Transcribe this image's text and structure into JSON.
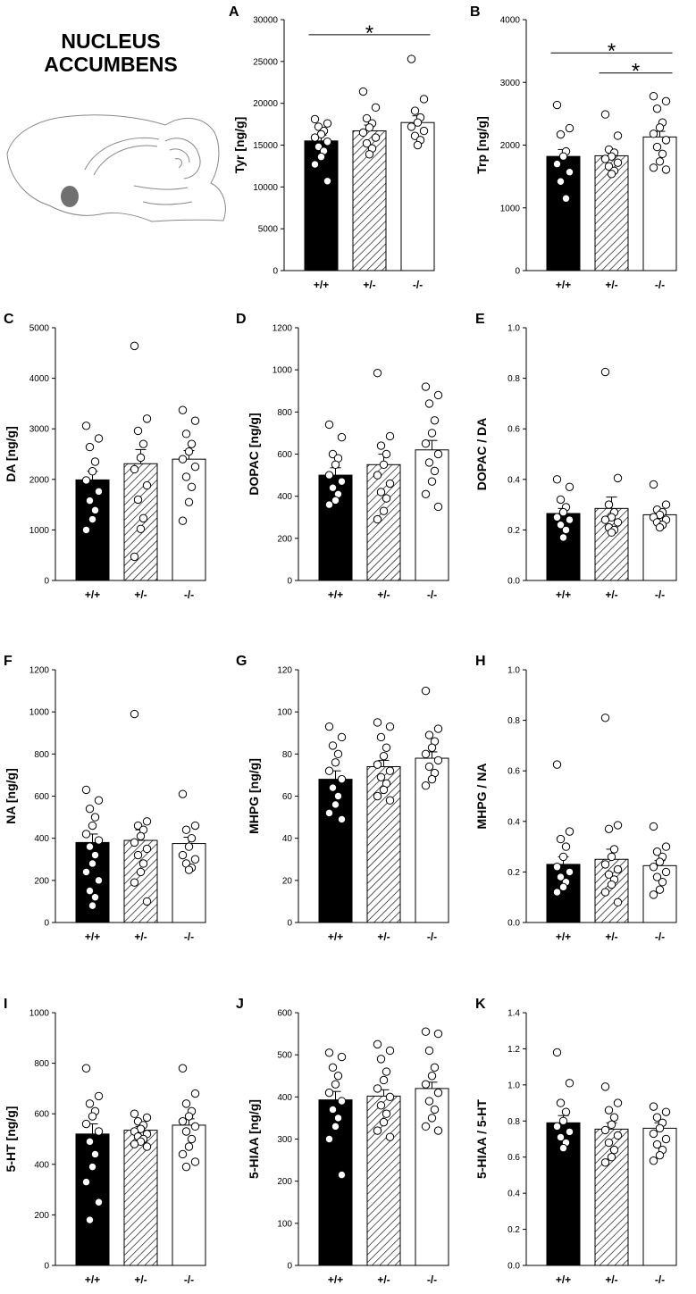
{
  "figure": {
    "title_lines": [
      "NUCLEUS",
      "ACCUMBENS"
    ],
    "bar_colors": [
      "#000000",
      "hatch",
      "#ffffff"
    ]
  },
  "chart_data": [
    {
      "id": "A",
      "type": "bar",
      "ylabel": "Tyr [ng/g]",
      "categories": [
        "+/+",
        "+/-",
        "-/-"
      ],
      "values": [
        15500,
        16700,
        17700
      ],
      "errors": [
        700,
        700,
        800
      ],
      "ylim": [
        0,
        30000
      ],
      "yticks": [
        0,
        5000,
        10000,
        15000,
        20000,
        25000,
        30000
      ],
      "points": [
        [
          18100,
          17600,
          17200,
          16700,
          16300,
          15900,
          15400,
          14800,
          14300,
          13600,
          12700,
          10700
        ],
        [
          21400,
          19500,
          18200,
          17600,
          17100,
          16500,
          15900,
          15200,
          14600,
          13900
        ],
        [
          25300,
          20500,
          19100,
          18300,
          17700,
          17200,
          16700,
          16100,
          15600,
          15000
        ]
      ],
      "significance": [
        {
          "from": 0,
          "to": 2,
          "label": "*",
          "y": 28200
        }
      ]
    },
    {
      "id": "B",
      "type": "bar",
      "ylabel": "Trp [ng/g]",
      "categories": [
        "+/+",
        "+/-",
        "-/-"
      ],
      "values": [
        1820,
        1830,
        2130
      ],
      "errors": [
        110,
        70,
        90
      ],
      "ylim": [
        0,
        4000
      ],
      "yticks": [
        0,
        1000,
        2000,
        3000,
        4000
      ],
      "points": [
        [
          2640,
          2270,
          2170,
          1900,
          1820,
          1700,
          1570,
          1420,
          1150
        ],
        [
          2490,
          2150,
          1930,
          1880,
          1820,
          1780,
          1720,
          1660,
          1590,
          1540
        ],
        [
          2780,
          2700,
          2580,
          2360,
          2280,
          2180,
          2080,
          1970,
          1860,
          1740,
          1640,
          1610
        ]
      ],
      "significance": [
        {
          "from": 0,
          "to": 2,
          "label": "*",
          "y": 3470
        },
        {
          "from": 1,
          "to": 2,
          "label": "*",
          "y": 3150
        }
      ]
    },
    {
      "id": "C",
      "type": "bar",
      "ylabel": "DA [ng/g]",
      "categories": [
        "+/+",
        "+/-",
        "-/-"
      ],
      "values": [
        1990,
        2310,
        2400
      ],
      "errors": [
        170,
        280,
        170
      ],
      "ylim": [
        0,
        5000
      ],
      "yticks": [
        0,
        1000,
        2000,
        3000,
        4000,
        5000
      ],
      "points": [
        [
          3060,
          2810,
          2640,
          2350,
          2160,
          1980,
          1760,
          1580,
          1390,
          1210,
          1000
        ],
        [
          4640,
          3200,
          2960,
          2700,
          2430,
          2200,
          1880,
          1600,
          1230,
          1020,
          470
        ],
        [
          3370,
          3160,
          2900,
          2700,
          2550,
          2400,
          2250,
          2050,
          1850,
          1550,
          1180
        ]
      ],
      "significance": []
    },
    {
      "id": "D",
      "type": "bar",
      "ylabel": "DOPAC [ng/g]",
      "categories": [
        "+/+",
        "+/-",
        "-/-"
      ],
      "values": [
        500,
        550,
        620
      ],
      "errors": [
        35,
        50,
        45
      ],
      "ylim": [
        0,
        1200
      ],
      "yticks": [
        0,
        200,
        400,
        600,
        800,
        1000,
        1200
      ],
      "points": [
        [
          740,
          680,
          600,
          580,
          550,
          500,
          470,
          440,
          410,
          380,
          360
        ],
        [
          985,
          685,
          640,
          600,
          550,
          500,
          460,
          420,
          390,
          330,
          290
        ],
        [
          920,
          880,
          840,
          760,
          700,
          650,
          600,
          560,
          520,
          470,
          410,
          350
        ]
      ],
      "significance": []
    },
    {
      "id": "E",
      "type": "bar",
      "ylabel": "DOPAC / DA",
      "categories": [
        "+/+",
        "+/-",
        "-/-"
      ],
      "values": [
        0.265,
        0.285,
        0.26
      ],
      "errors": [
        0.02,
        0.045,
        0.015
      ],
      "ylim": [
        0,
        1.0
      ],
      "yticks": [
        "0.0",
        "0.2",
        "0.4",
        "0.6",
        "0.8",
        "1.0"
      ],
      "points": [
        [
          0.4,
          0.37,
          0.32,
          0.29,
          0.27,
          0.25,
          0.24,
          0.22,
          0.2,
          0.17
        ],
        [
          0.825,
          0.405,
          0.3,
          0.27,
          0.25,
          0.24,
          0.23,
          0.21,
          0.2,
          0.19
        ],
        [
          0.38,
          0.3,
          0.28,
          0.27,
          0.26,
          0.25,
          0.24,
          0.23,
          0.22,
          0.21
        ]
      ],
      "significance": []
    },
    {
      "id": "F",
      "type": "bar",
      "ylabel": "NA [ng/g]",
      "categories": [
        "+/+",
        "+/-",
        "-/-"
      ],
      "values": [
        380,
        390,
        375
      ],
      "errors": [
        40,
        50,
        30
      ],
      "ylim": [
        0,
        1200
      ],
      "yticks": [
        0,
        200,
        400,
        600,
        800,
        1000,
        1200
      ],
      "points": [
        [
          630,
          580,
          540,
          500,
          460,
          420,
          390,
          360,
          320,
          280,
          240,
          200,
          150,
          120,
          80
        ],
        [
          990,
          480,
          460,
          440,
          410,
          380,
          350,
          320,
          280,
          240,
          190,
          100
        ],
        [
          610,
          460,
          440,
          400,
          360,
          320,
          300,
          280,
          260,
          250
        ]
      ],
      "significance": []
    },
    {
      "id": "G",
      "type": "bar",
      "ylabel": "MHPG [ng/g]",
      "categories": [
        "+/+",
        "+/-",
        "-/-"
      ],
      "values": [
        68,
        74,
        78
      ],
      "errors": [
        4,
        3,
        3
      ],
      "ylim": [
        0,
        120
      ],
      "yticks": [
        0,
        20,
        40,
        60,
        80,
        100,
        120
      ],
      "points": [
        [
          93,
          88,
          84,
          80,
          76,
          72,
          68,
          64,
          60,
          56,
          52,
          49
        ],
        [
          95,
          93,
          88,
          83,
          79,
          75,
          72,
          69,
          66,
          63,
          60,
          58
        ],
        [
          110,
          92,
          89,
          86,
          83,
          80,
          77,
          74,
          71,
          68,
          65
        ]
      ],
      "significance": []
    },
    {
      "id": "H",
      "type": "bar",
      "ylabel": "MHPG / NA",
      "categories": [
        "+/+",
        "+/-",
        "-/-"
      ],
      "values": [
        0.23,
        0.25,
        0.225
      ],
      "errors": [
        0.03,
        0.04,
        0.02
      ],
      "ylim": [
        0,
        1.0
      ],
      "yticks": [
        "0.0",
        "0.2",
        "0.4",
        "0.6",
        "0.8",
        "1.0"
      ],
      "points": [
        [
          0.625,
          0.36,
          0.33,
          0.3,
          0.26,
          0.22,
          0.2,
          0.18,
          0.16,
          0.14,
          0.12
        ],
        [
          0.81,
          0.385,
          0.37,
          0.29,
          0.26,
          0.23,
          0.21,
          0.19,
          0.17,
          0.15,
          0.12,
          0.08
        ],
        [
          0.38,
          0.3,
          0.28,
          0.26,
          0.24,
          0.22,
          0.2,
          0.18,
          0.16,
          0.13,
          0.11
        ]
      ],
      "significance": []
    },
    {
      "id": "I",
      "type": "bar",
      "ylabel": "5-HT [ng/g]",
      "categories": [
        "+/+",
        "+/-",
        "-/-"
      ],
      "values": [
        520,
        535,
        555
      ],
      "errors": [
        40,
        15,
        25
      ],
      "ylim": [
        0,
        1000
      ],
      "yticks": [
        0,
        200,
        400,
        600,
        800,
        1000
      ],
      "points": [
        [
          780,
          670,
          640,
          610,
          590,
          560,
          530,
          490,
          440,
          390,
          330,
          250,
          180
        ],
        [
          600,
          585,
          570,
          555,
          540,
          530,
          520,
          510,
          500,
          490,
          480,
          470
        ],
        [
          780,
          680,
          640,
          610,
          590,
          570,
          550,
          530,
          500,
          470,
          440,
          410,
          390
        ]
      ],
      "significance": []
    },
    {
      "id": "J",
      "type": "bar",
      "ylabel": "5-HIAA [ng/g]",
      "categories": [
        "+/+",
        "+/-",
        "-/-"
      ],
      "values": [
        393,
        402,
        420
      ],
      "errors": [
        20,
        15,
        15
      ],
      "ylim": [
        0,
        600
      ],
      "yticks": [
        0,
        100,
        200,
        300,
        400,
        500,
        600
      ],
      "points": [
        [
          505,
          495,
          470,
          450,
          430,
          410,
          390,
          370,
          350,
          330,
          300,
          215
        ],
        [
          525,
          510,
          490,
          460,
          440,
          420,
          400,
          380,
          360,
          340,
          320,
          305
        ],
        [
          555,
          550,
          510,
          470,
          450,
          430,
          410,
          390,
          370,
          350,
          330,
          320
        ]
      ],
      "significance": []
    },
    {
      "id": "K",
      "type": "bar",
      "ylabel": "5-HIAA / 5-HT",
      "categories": [
        "+/+",
        "+/-",
        "-/-"
      ],
      "values": [
        0.79,
        0.755,
        0.76
      ],
      "errors": [
        0.04,
        0.035,
        0.03
      ],
      "ylim": [
        0,
        1.4
      ],
      "yticks": [
        "0.0",
        "0.2",
        "0.4",
        "0.6",
        "0.8",
        "1.0",
        "1.2",
        "1.4"
      ],
      "points": [
        [
          1.18,
          1.01,
          0.9,
          0.85,
          0.8,
          0.77,
          0.74,
          0.71,
          0.68,
          0.65
        ],
        [
          0.99,
          0.9,
          0.86,
          0.82,
          0.78,
          0.75,
          0.72,
          0.68,
          0.64,
          0.6,
          0.57
        ],
        [
          0.88,
          0.85,
          0.82,
          0.79,
          0.76,
          0.73,
          0.7,
          0.67,
          0.64,
          0.61,
          0.58
        ]
      ],
      "significance": []
    }
  ]
}
